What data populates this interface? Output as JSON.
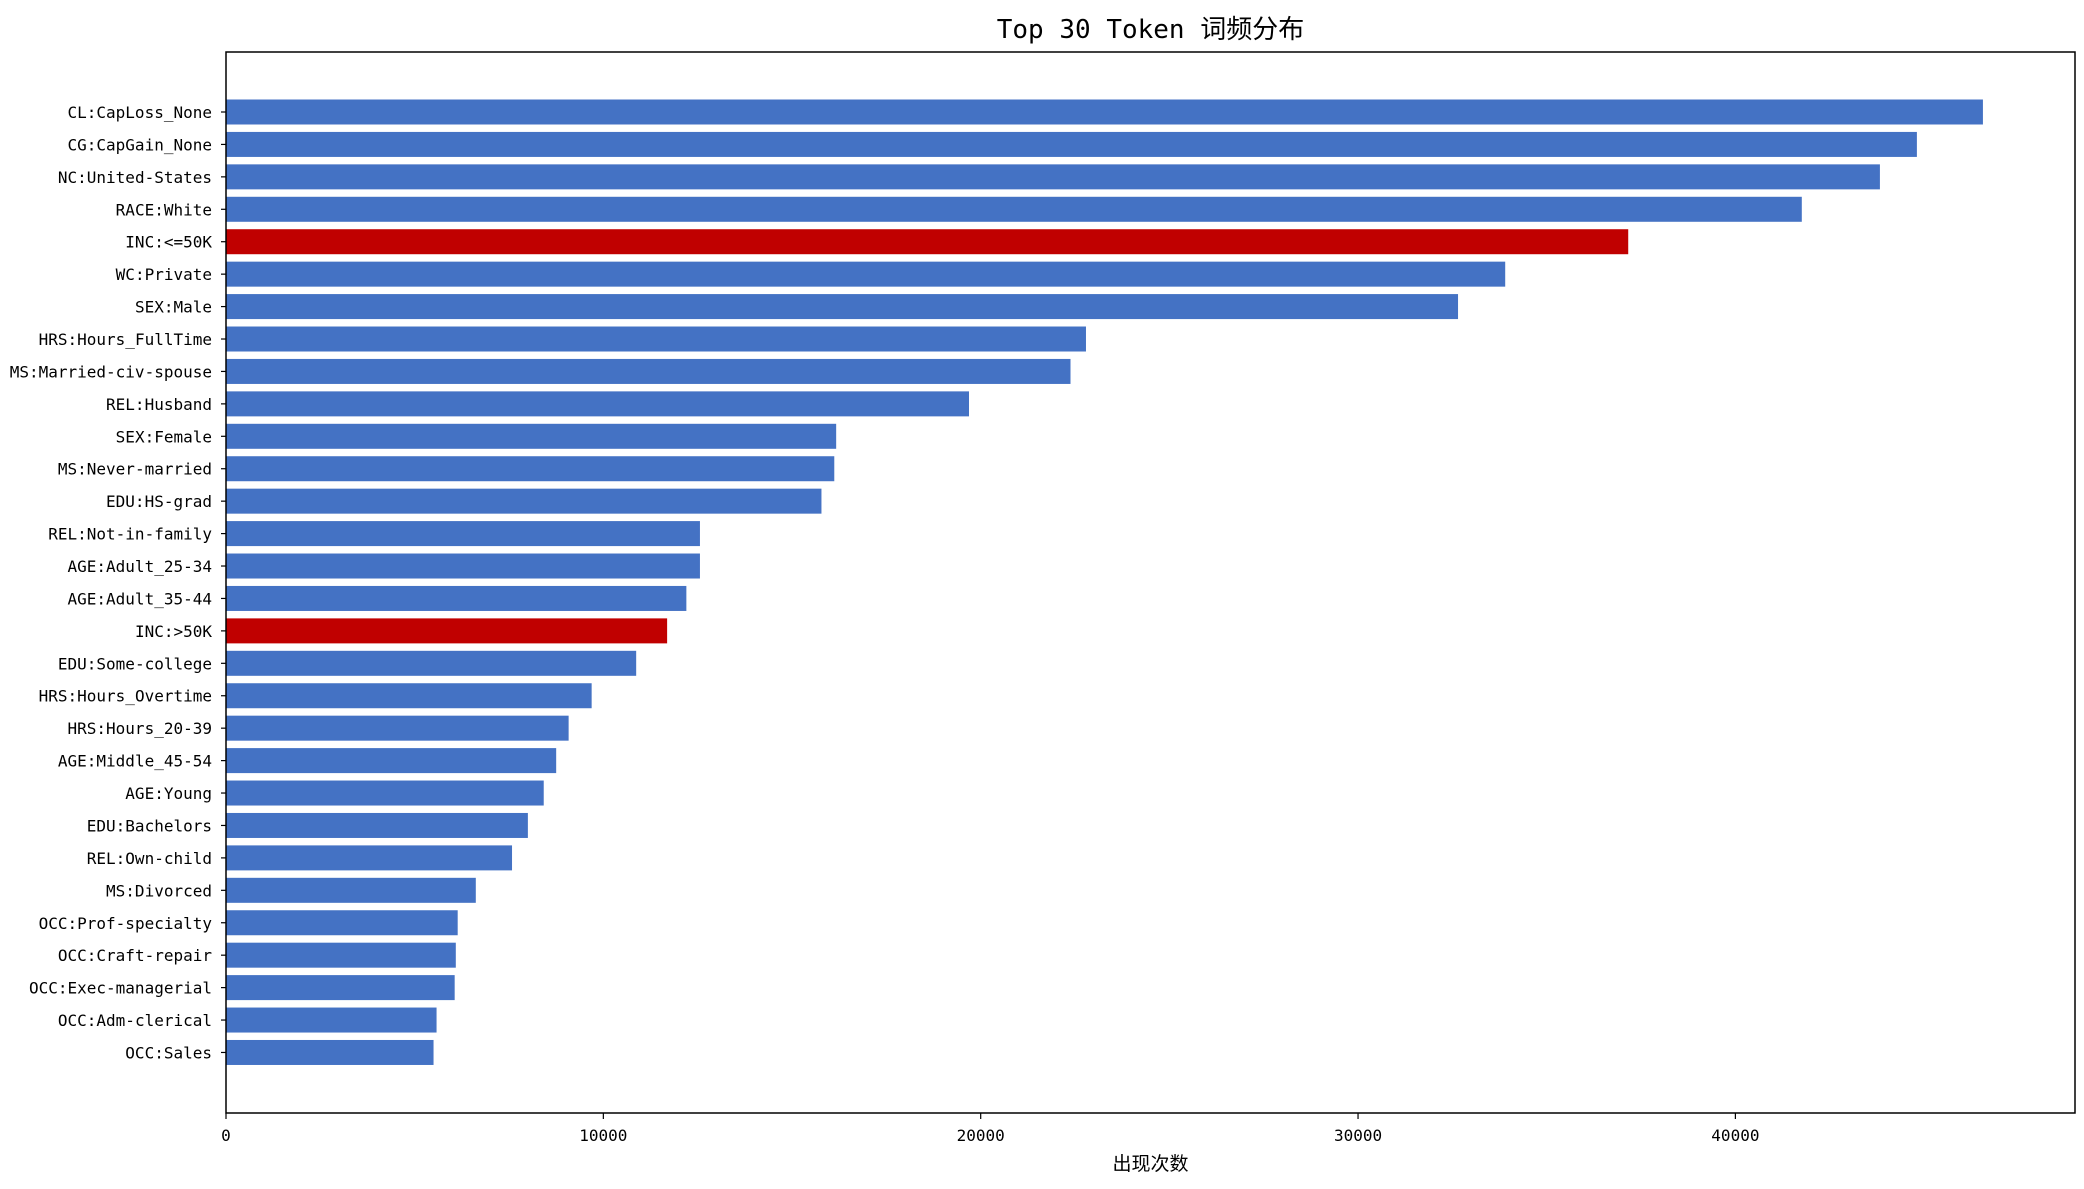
{
  "chart_data": {
    "type": "bar",
    "orientation": "horizontal",
    "title": "Top 30 Token 词频分布",
    "xlabel": "出现次数",
    "ylabel": "",
    "xlim": [
      0,
      49000
    ],
    "xticks": [
      "0",
      "10000",
      "20000",
      "30000",
      "40000"
    ],
    "grid": false,
    "categories": [
      "CL:CapLoss_None",
      "CG:CapGain_None",
      "NC:United-States",
      "RACE:White",
      "INC:<=50K",
      "WC:Private",
      "SEX:Male",
      "HRS:Hours_FullTime",
      "MS:Married-civ-spouse",
      "REL:Husband",
      "SEX:Female",
      "MS:Never-married",
      "EDU:HS-grad",
      "REL:Not-in-family",
      "AGE:Adult_25-34",
      "AGE:Adult_35-44",
      "INC:>50K",
      "EDU:Some-college",
      "HRS:Hours_Overtime",
      "HRS:Hours_20-39",
      "AGE:Middle_45-54",
      "AGE:Young",
      "EDU:Bachelors",
      "REL:Own-child",
      "MS:Divorced",
      "OCC:Prof-specialty",
      "OCC:Craft-repair",
      "OCC:Exec-managerial",
      "OCC:Adm-clerical",
      "OCC:Sales"
    ],
    "values": [
      46560,
      44810,
      43830,
      41760,
      37160,
      33900,
      32650,
      22790,
      22380,
      19690,
      16170,
      16120,
      15780,
      12560,
      12560,
      12200,
      11690,
      10870,
      9690,
      9080,
      8750,
      8420,
      8000,
      7580,
      6620,
      6140,
      6090,
      6060,
      5580,
      5500
    ],
    "bar_colors": [
      "#4472C4",
      "#4472C4",
      "#4472C4",
      "#4472C4",
      "#C00000",
      "#4472C4",
      "#4472C4",
      "#4472C4",
      "#4472C4",
      "#4472C4",
      "#4472C4",
      "#4472C4",
      "#4472C4",
      "#4472C4",
      "#4472C4",
      "#4472C4",
      "#C00000",
      "#4472C4",
      "#4472C4",
      "#4472C4",
      "#4472C4",
      "#4472C4",
      "#4472C4",
      "#4472C4",
      "#4472C4",
      "#4472C4",
      "#4472C4",
      "#4472C4",
      "#4472C4",
      "#4472C4"
    ]
  }
}
